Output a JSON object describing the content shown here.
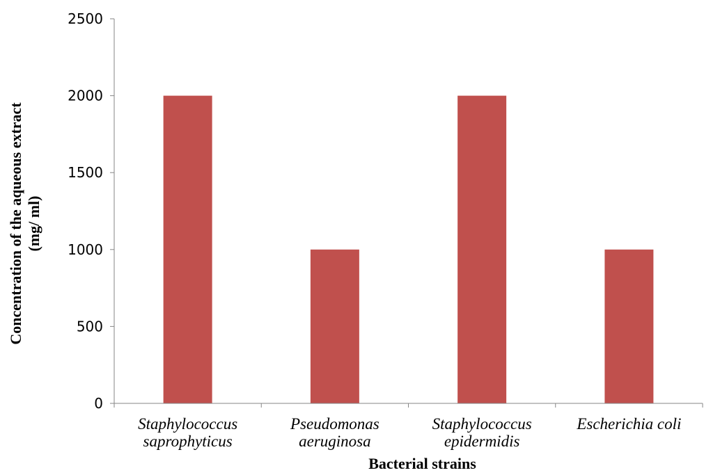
{
  "chart_data": {
    "type": "bar",
    "categories": [
      [
        "Staphylococcus",
        "saprophyticus"
      ],
      [
        "Pseudomonas",
        "aeruginosa"
      ],
      [
        "Staphylococcus",
        "epidermidis"
      ],
      [
        "Escherichia coli"
      ]
    ],
    "values": [
      2000,
      1000,
      2000,
      1000
    ],
    "xlabel": "Bacterial strains",
    "ylabel": [
      "Concentration of the aqueous extract",
      "(mg/ ml)"
    ],
    "ylim": [
      0,
      2500
    ],
    "yticks": [
      0,
      500,
      1000,
      1500,
      2000,
      2500
    ],
    "grid": false,
    "legend": "none",
    "bar_color": "#C0504D"
  }
}
